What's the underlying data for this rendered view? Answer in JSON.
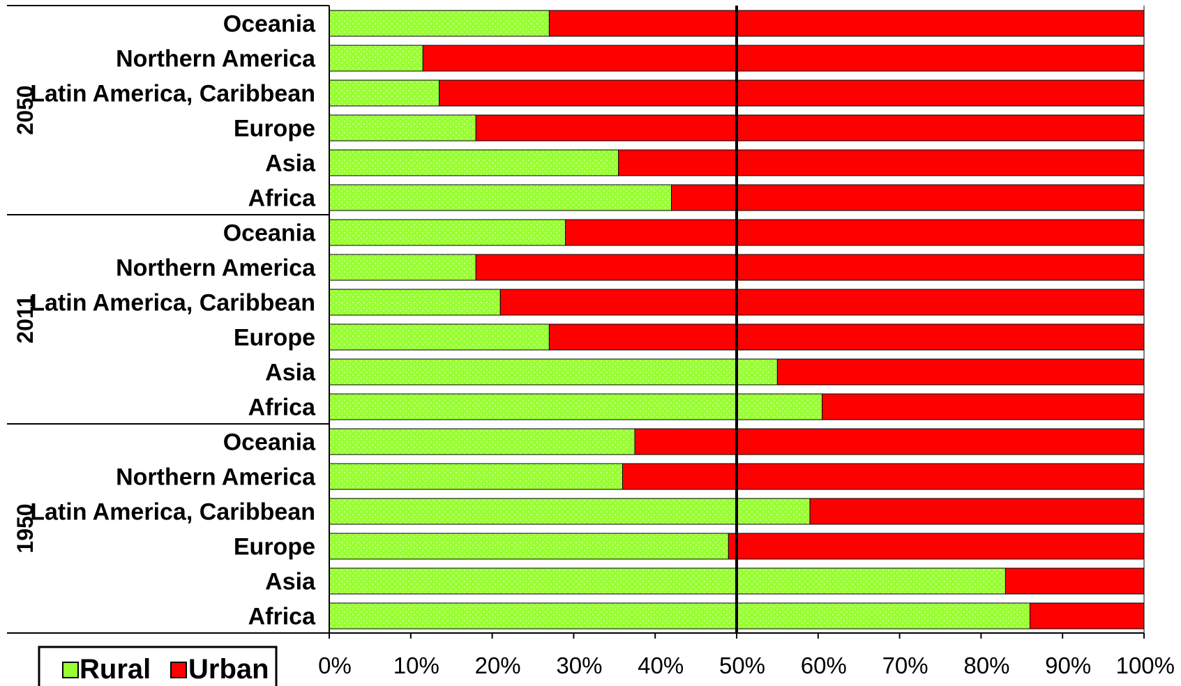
{
  "chart_data": {
    "type": "bar",
    "orientation": "horizontal",
    "stacked": true,
    "percent": true,
    "groups": [
      {
        "label": "2050",
        "rows": [
          {
            "category": "Oceania",
            "rural": 27,
            "urban": 73
          },
          {
            "category": "Northern America",
            "rural": 11.5,
            "urban": 88.5
          },
          {
            "category": "Latin America, Caribbean",
            "rural": 13.5,
            "urban": 86.5
          },
          {
            "category": "Europe",
            "rural": 18,
            "urban": 82
          },
          {
            "category": "Asia",
            "rural": 35.5,
            "urban": 64.5
          },
          {
            "category": "Africa",
            "rural": 42,
            "urban": 58
          }
        ]
      },
      {
        "label": "2011",
        "rows": [
          {
            "category": "Oceania",
            "rural": 29,
            "urban": 71
          },
          {
            "category": "Northern America",
            "rural": 18,
            "urban": 82
          },
          {
            "category": "Latin America, Caribbean",
            "rural": 21,
            "urban": 79
          },
          {
            "category": "Europe",
            "rural": 27,
            "urban": 73
          },
          {
            "category": "Asia",
            "rural": 55,
            "urban": 45
          },
          {
            "category": "Africa",
            "rural": 60.5,
            "urban": 39.5
          }
        ]
      },
      {
        "label": "1950",
        "rows": [
          {
            "category": "Oceania",
            "rural": 37.5,
            "urban": 62.5
          },
          {
            "category": "Northern America",
            "rural": 36,
            "urban": 64
          },
          {
            "category": "Latin America, Caribbean",
            "rural": 59,
            "urban": 41
          },
          {
            "category": "Europe",
            "rural": 49,
            "urban": 51
          },
          {
            "category": "Asia",
            "rural": 83,
            "urban": 17
          },
          {
            "category": "Africa",
            "rural": 86,
            "urban": 14
          }
        ]
      }
    ],
    "series": [
      {
        "name": "Rural",
        "color": "#99ff33"
      },
      {
        "name": "Urban",
        "color": "#ff0000"
      }
    ],
    "xlim": [
      0,
      100
    ],
    "x_ticks": [
      "0%",
      "10%",
      "20%",
      "30%",
      "40%",
      "50%",
      "60%",
      "70%",
      "80%",
      "90%",
      "100%"
    ],
    "reference_line": 50,
    "legend": {
      "position": "bottom-left",
      "items": [
        "Rural",
        "Urban"
      ]
    },
    "grid": false
  }
}
